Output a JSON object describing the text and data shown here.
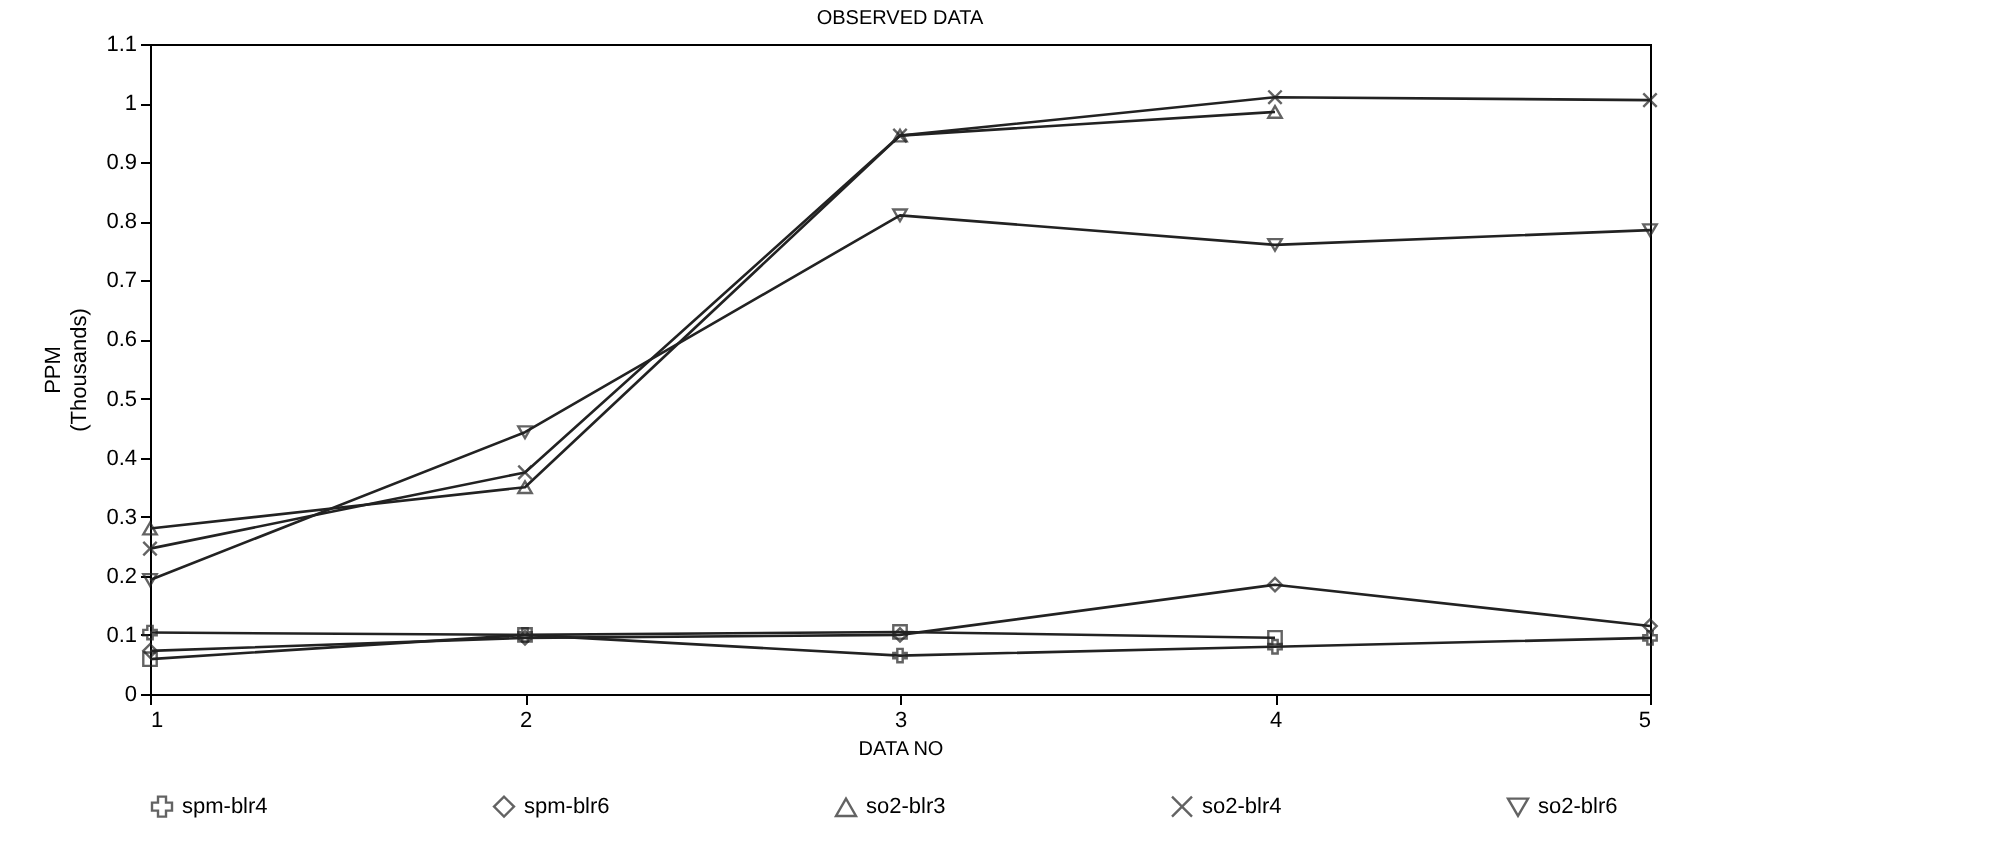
{
  "chart_data": {
    "type": "line",
    "title": "OBSERVED DATA",
    "xlabel": "DATA NO",
    "ylabel": "PPM\n(Thousands)",
    "x": [
      1,
      2,
      3,
      4,
      5
    ],
    "xlim": [
      1,
      5
    ],
    "xticks": [
      1,
      2,
      3,
      4,
      5
    ],
    "ylim": [
      0,
      1.1
    ],
    "yticks": [
      0,
      0.1,
      0.2,
      0.3,
      0.4,
      0.5,
      0.6,
      0.7,
      0.8,
      0.9,
      1,
      1.1
    ],
    "grid": false,
    "legend": "bottom",
    "line_style": "solid",
    "series": [
      {
        "color": "#222222",
        "marker": "square",
        "values": [
          0.059,
          0.1,
          0.105,
          0.095,
          null
        ]
      },
      {
        "name": "spm-blr4",
        "color": "#222222",
        "marker": "plus",
        "values": [
          0.104,
          0.1,
          0.065,
          0.08,
          0.095
        ]
      },
      {
        "name": "spm-blr6",
        "color": "#222222",
        "marker": "diamond",
        "values": [
          0.073,
          0.095,
          0.1,
          0.185,
          0.115
        ]
      },
      {
        "name": "so2-blr3",
        "color": "#222222",
        "marker": "triangle",
        "values": [
          0.28,
          0.35,
          0.945,
          0.985,
          null
        ]
      },
      {
        "name": "so2-blr4",
        "color": "#222222",
        "marker": "cross",
        "values": [
          0.246,
          0.375,
          0.945,
          1.01,
          1.005
        ]
      },
      {
        "name": "so2-blr6",
        "color": "#222222",
        "marker": "triangle-down",
        "values": [
          0.193,
          0.443,
          0.81,
          0.76,
          0.785
        ]
      }
    ]
  }
}
